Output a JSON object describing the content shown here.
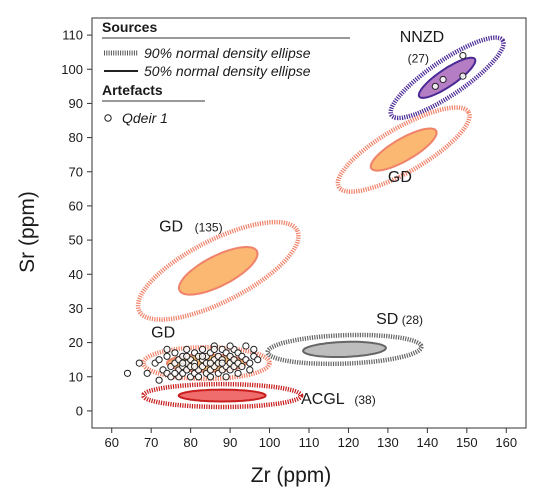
{
  "chart_data": {
    "type": "scatter",
    "xlabel": "Zr (ppm)",
    "ylabel": "Sr (ppm)",
    "xlim": [
      55,
      165
    ],
    "ylim": [
      -5,
      115
    ],
    "x_ticks": [
      60,
      70,
      80,
      90,
      100,
      110,
      120,
      130,
      140,
      150,
      160
    ],
    "y_ticks": [
      0,
      10,
      20,
      30,
      40,
      50,
      60,
      70,
      80,
      90,
      100,
      110
    ],
    "grid": false,
    "legend": {
      "placement": "top-left",
      "sources_heading": "Sources",
      "ellipse90_label": "90% normal density ellipse",
      "ellipse50_label": "50% normal density ellipse",
      "artefacts_heading": "Artefacts",
      "artefact_label": "Qdeir 1"
    },
    "sources": [
      {
        "name": "NNZD",
        "n": "(27)",
        "fill": "#b57ec4",
        "stroke": "#4b2a96",
        "center": [
          145,
          97.5
        ],
        "e50": {
          "a": 8.5,
          "b": 2.2,
          "angle": 34
        },
        "e90": {
          "a": 17,
          "b": 4.4,
          "angle": 34
        }
      },
      {
        "name": "GD",
        "n": "",
        "fill": "#fbb872",
        "stroke": "#f0826a",
        "center": [
          134,
          76.5
        ],
        "e50": {
          "a": 9.5,
          "b": 2.8,
          "angle": 30
        },
        "e90": {
          "a": 19,
          "b": 5.6,
          "angle": 30
        }
      },
      {
        "name": "GD",
        "n": "(135)",
        "fill": "#fbb872",
        "stroke": "#f0826a",
        "center": [
          87,
          41
        ],
        "e50": {
          "a": 11,
          "b": 3.8,
          "angle": 27
        },
        "e90": {
          "a": 22.5,
          "b": 7.8,
          "angle": 27
        }
      },
      {
        "name": "SD",
        "n": "(28)",
        "fill": "#bdbdbd",
        "stroke": "#666666",
        "center": [
          119,
          18
        ],
        "e50": {
          "a": 10.5,
          "b": 1.9,
          "angle": 2
        },
        "e90": {
          "a": 19.5,
          "b": 3.6,
          "angle": 2
        }
      },
      {
        "name": "ACGL",
        "n": "(38)",
        "fill": "#f06d6d",
        "stroke": "#c81e1e",
        "center": [
          88,
          4.5
        ],
        "e50": {
          "a": 11,
          "b": 1.5,
          "angle": 0
        },
        "e90": {
          "a": 20,
          "b": 2.9,
          "angle": 0
        }
      },
      {
        "name": "GD",
        "n": "",
        "fill": "#fbb872",
        "stroke": "#f0826a",
        "center": [
          84,
          14
        ],
        "e50": {
          "a": 10,
          "b": 2.2,
          "angle": 0
        },
        "e90": {
          "a": 16,
          "b": 4.0,
          "angle": 0
        }
      }
    ],
    "points": [
      [
        64,
        11
      ],
      [
        67,
        14
      ],
      [
        69,
        11
      ],
      [
        71,
        14
      ],
      [
        72,
        9
      ],
      [
        72,
        15
      ],
      [
        73,
        12
      ],
      [
        74,
        11
      ],
      [
        74,
        16
      ],
      [
        75,
        13
      ],
      [
        75,
        10
      ],
      [
        76,
        14
      ],
      [
        76,
        17
      ],
      [
        77,
        12
      ],
      [
        77,
        15
      ],
      [
        77,
        10
      ],
      [
        78,
        13
      ],
      [
        78,
        16
      ],
      [
        78,
        11
      ],
      [
        79,
        14
      ],
      [
        79,
        18
      ],
      [
        79,
        12
      ],
      [
        80,
        10
      ],
      [
        80,
        15
      ],
      [
        80,
        13
      ],
      [
        81,
        17
      ],
      [
        81,
        11
      ],
      [
        81,
        14
      ],
      [
        82,
        12
      ],
      [
        82,
        16
      ],
      [
        82,
        10
      ],
      [
        83,
        15
      ],
      [
        83,
        13
      ],
      [
        83,
        18
      ],
      [
        84,
        11
      ],
      [
        84,
        14
      ],
      [
        84,
        16
      ],
      [
        85,
        12
      ],
      [
        85,
        17
      ],
      [
        85,
        10
      ],
      [
        86,
        15
      ],
      [
        86,
        13
      ],
      [
        86,
        19
      ],
      [
        87,
        11
      ],
      [
        87,
        16
      ],
      [
        87,
        14
      ],
      [
        88,
        12
      ],
      [
        88,
        18
      ],
      [
        88,
        15
      ],
      [
        89,
        13
      ],
      [
        89,
        17
      ],
      [
        89,
        10
      ],
      [
        90,
        14
      ],
      [
        90,
        16
      ],
      [
        90,
        12
      ],
      [
        91,
        18
      ],
      [
        91,
        15
      ],
      [
        91,
        13
      ],
      [
        92,
        14
      ],
      [
        92,
        17
      ],
      [
        92,
        11
      ],
      [
        93,
        16
      ],
      [
        93,
        13
      ],
      [
        94,
        15
      ],
      [
        94,
        19
      ],
      [
        95,
        14
      ],
      [
        95,
        12
      ],
      [
        96,
        16
      ],
      [
        96,
        18
      ],
      [
        97,
        15
      ],
      [
        74,
        18
      ],
      [
        76,
        11
      ],
      [
        79,
        16
      ],
      [
        83,
        16
      ],
      [
        86,
        18
      ],
      [
        88,
        14
      ],
      [
        90,
        19
      ],
      [
        85,
        14
      ],
      [
        81,
        13
      ],
      [
        78,
        14
      ],
      [
        142,
        95
      ],
      [
        144,
        97
      ],
      [
        149,
        98
      ],
      [
        149,
        104
      ]
    ]
  }
}
